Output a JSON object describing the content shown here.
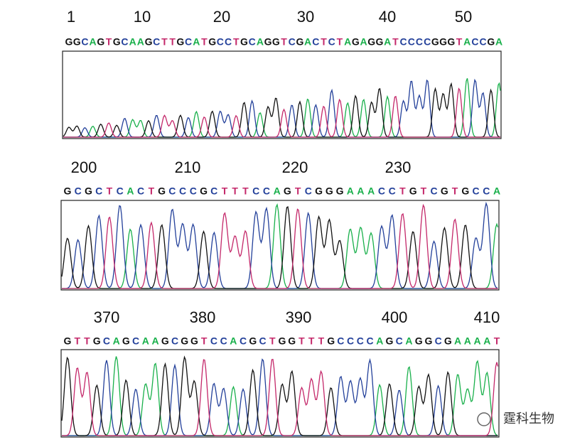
{
  "base_colors": {
    "A": "#19b04b",
    "C": "#23409a",
    "G": "#111111",
    "T": "#c4286a"
  },
  "panels": [
    {
      "positions": [
        "1",
        "10",
        "20",
        "30",
        "40",
        "50"
      ],
      "sequence": [
        "G",
        "G",
        "C",
        "A",
        "G",
        "T",
        "G",
        "C",
        "A",
        "A",
        "G",
        "C",
        "T",
        "T",
        "G",
        "C",
        "A",
        "T",
        "G",
        "C",
        "C",
        "T",
        "G",
        "C",
        "A",
        "G",
        "G",
        "T",
        "C",
        "G",
        "A",
        "C",
        "T",
        "C",
        "T",
        "A",
        "G",
        "A",
        "G",
        "G",
        "A",
        "T",
        "C",
        "C",
        "C",
        "C",
        "G",
        "G",
        "G",
        "T",
        "A",
        "C",
        "C",
        "G",
        "A"
      ]
    },
    {
      "positions": [
        "200",
        "210",
        "220",
        "230"
      ],
      "sequence": [
        "G",
        "C",
        "G",
        "C",
        "T",
        "C",
        "A",
        "C",
        "T",
        "G",
        "C",
        "C",
        "C",
        "G",
        "C",
        "T",
        "T",
        "T",
        "C",
        "C",
        "A",
        "G",
        "T",
        "C",
        "G",
        "G",
        "G",
        "A",
        "A",
        "A",
        "C",
        "C",
        "T",
        "G",
        "T",
        "C",
        "G",
        "T",
        "G",
        "C",
        "C",
        "A"
      ]
    },
    {
      "positions": [
        "370",
        "380",
        "390",
        "400",
        "410"
      ],
      "sequence": [
        "G",
        "T",
        "T",
        "G",
        "C",
        "A",
        "G",
        "C",
        "A",
        "A",
        "G",
        "C",
        "G",
        "G",
        "T",
        "C",
        "C",
        "A",
        "C",
        "G",
        "C",
        "T",
        "G",
        "G",
        "T",
        "T",
        "T",
        "G",
        "C",
        "C",
        "C",
        "C",
        "A",
        "G",
        "C",
        "A",
        "G",
        "G",
        "C",
        "G",
        "A",
        "A",
        "A",
        "A",
        "T"
      ]
    }
  ],
  "watermark": "霆科生物"
}
